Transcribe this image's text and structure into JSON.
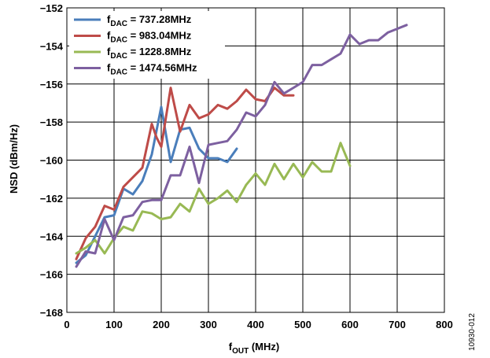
{
  "figure_id": "10930-012",
  "chart_data": {
    "type": "line",
    "title": "",
    "xlabel": {
      "main": "f",
      "sub": "OUT",
      "unit": " (MHz)"
    },
    "ylabel": "NSD (dBm/Hz)",
    "xlim": [
      0,
      800
    ],
    "ylim": [
      -168,
      -152
    ],
    "xticks": [
      0,
      100,
      200,
      300,
      400,
      500,
      600,
      700,
      800
    ],
    "yticks": [
      -152,
      -154,
      -156,
      -158,
      -160,
      -162,
      -164,
      -166,
      -168
    ],
    "grid": true,
    "legend_position": "top-left",
    "series": [
      {
        "name": "f_DAC = 737.28MHz",
        "legend": {
          "main": "f",
          "sub": "DAC",
          "rest": " = 737.28MHz"
        },
        "color": "#4a7ebb",
        "x": [
          20,
          40,
          60,
          80,
          100,
          120,
          140,
          160,
          180,
          200,
          220,
          240,
          260,
          280,
          300,
          320,
          340,
          360
        ],
        "y": [
          -165.4,
          -165.0,
          -164.0,
          -163.0,
          -162.9,
          -161.5,
          -161.8,
          -161.1,
          -159.7,
          -157.2,
          -160.1,
          -158.4,
          -158.3,
          -159.4,
          -159.9,
          -159.9,
          -160.1,
          -159.4
        ]
      },
      {
        "name": "f_DAC = 983.04MHz",
        "legend": {
          "main": "f",
          "sub": "DAC",
          "rest": " = 983.04MHz"
        },
        "color": "#be4b48",
        "x": [
          20,
          40,
          60,
          80,
          100,
          120,
          140,
          160,
          180,
          190,
          200,
          220,
          240,
          260,
          280,
          300,
          320,
          340,
          360,
          380,
          400,
          420,
          440,
          460,
          480
        ],
        "y": [
          -165.2,
          -164.1,
          -163.5,
          -162.4,
          -162.6,
          -161.4,
          -160.9,
          -160.4,
          -158.1,
          -158.8,
          -159.3,
          -156.2,
          -158.5,
          -157.1,
          -157.8,
          -157.6,
          -157.1,
          -157.3,
          -156.9,
          -156.3,
          -156.8,
          -156.9,
          -156.2,
          -156.6,
          -156.6
        ]
      },
      {
        "name": "f_DAC = 1228.8MHz",
        "legend": {
          "main": "f",
          "sub": "DAC",
          "rest": " = 1228.8MHz"
        },
        "color": "#98b954",
        "x": [
          20,
          40,
          60,
          80,
          100,
          120,
          140,
          160,
          180,
          200,
          220,
          240,
          260,
          280,
          300,
          320,
          340,
          360,
          380,
          400,
          420,
          440,
          460,
          480,
          500,
          520,
          540,
          560,
          580,
          600
        ],
        "y": [
          -164.9,
          -164.6,
          -164.2,
          -164.9,
          -164.1,
          -163.5,
          -163.7,
          -162.7,
          -162.8,
          -163.1,
          -163.0,
          -162.3,
          -162.7,
          -161.5,
          -162.3,
          -162.0,
          -161.6,
          -162.2,
          -161.3,
          -160.7,
          -161.3,
          -160.2,
          -161.0,
          -160.2,
          -160.9,
          -160.1,
          -160.6,
          -160.6,
          -159.1,
          -160.3
        ]
      },
      {
        "name": "f_DAC = 1474.56MHz",
        "legend": {
          "main": "f",
          "sub": "DAC",
          "rest": " = 1474.56MHz"
        },
        "color": "#7d60a0",
        "x": [
          20,
          40,
          60,
          80,
          100,
          120,
          140,
          160,
          180,
          200,
          220,
          240,
          260,
          280,
          300,
          320,
          340,
          360,
          380,
          400,
          420,
          440,
          460,
          480,
          500,
          520,
          540,
          560,
          580,
          600,
          620,
          640,
          660,
          680,
          700,
          720
        ],
        "y": [
          -165.6,
          -164.8,
          -164.9,
          -163.1,
          -164.2,
          -163.0,
          -162.9,
          -162.2,
          -162.1,
          -162.1,
          -160.8,
          -160.8,
          -159.3,
          -161.2,
          -159.2,
          -159.1,
          -159.0,
          -158.4,
          -157.5,
          -157.7,
          -157.1,
          -155.9,
          -156.5,
          -156.2,
          -155.9,
          -155.0,
          -155.0,
          -154.7,
          -154.4,
          -153.4,
          -153.9,
          -153.7,
          -153.7,
          -153.3,
          -153.1,
          -152.9
        ]
      }
    ]
  }
}
